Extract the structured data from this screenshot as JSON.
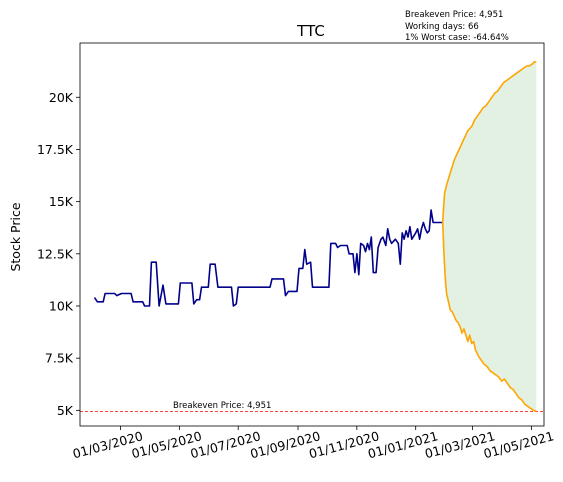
{
  "chart_data": {
    "type": "line",
    "title": "TTC",
    "xlabel": "",
    "ylabel": "Stock Price",
    "x_tick_labels": [
      "01/03/2020",
      "01/05/2020",
      "01/07/2020",
      "01/09/2020",
      "01/11/2020",
      "01/01/2021",
      "01/03/2021",
      "01/05/2021"
    ],
    "x_ticks": [
      "2020-03-01",
      "2020-05-01",
      "2020-07-01",
      "2020-09-01",
      "2020-11-01",
      "2021-01-01",
      "2021-03-01",
      "2021-05-01"
    ],
    "y_tick_labels": [
      "5K",
      "7.5K",
      "10K",
      "12.5K",
      "15K",
      "17.5K",
      "20K"
    ],
    "y_ticks": [
      5000,
      7500,
      10000,
      12500,
      15000,
      17500,
      20000
    ],
    "xlim": [
      "2020-01-19",
      "2021-05-14"
    ],
    "ylim": [
      4250,
      22600
    ],
    "grid": false,
    "annotations": {
      "breakeven_line_label": "Breakeven Price: 4,951",
      "info_lines": [
        "Breakeven Price: 4,951",
        "Working days: 66",
        "1% Worst case: -64.64%"
      ]
    },
    "breakeven_price": 4951,
    "colors": {
      "history": "#00008b",
      "projection": "#ffa500",
      "band_fill": "#e3f1e3",
      "breakeven": "#ff0000"
    },
    "series": [
      {
        "values": [
          [
            "2020-02-03",
            10400
          ],
          [
            "2020-02-06",
            10200
          ],
          [
            "2020-02-12",
            10200
          ],
          [
            "2020-02-14",
            10600
          ],
          [
            "2020-02-24",
            10600
          ],
          [
            "2020-02-26",
            10500
          ],
          [
            "2020-03-02",
            10600
          ],
          [
            "2020-03-12",
            10600
          ],
          [
            "2020-03-14",
            10200
          ],
          [
            "2020-03-24",
            10200
          ],
          [
            "2020-03-26",
            10000
          ],
          [
            "2020-03-31",
            10000
          ],
          [
            "2020-04-02",
            12100
          ],
          [
            "2020-04-07",
            12100
          ],
          [
            "2020-04-10",
            10000
          ],
          [
            "2020-04-14",
            11000
          ],
          [
            "2020-04-17",
            10100
          ],
          [
            "2020-04-30",
            10100
          ],
          [
            "2020-05-02",
            11100
          ],
          [
            "2020-05-14",
            11100
          ],
          [
            "2020-05-16",
            10100
          ],
          [
            "2020-05-19",
            10300
          ],
          [
            "2020-05-22",
            10300
          ],
          [
            "2020-05-24",
            10900
          ],
          [
            "2020-05-31",
            10900
          ],
          [
            "2020-06-02",
            12000
          ],
          [
            "2020-06-07",
            12000
          ],
          [
            "2020-06-10",
            10900
          ],
          [
            "2020-06-24",
            10900
          ],
          [
            "2020-06-26",
            10000
          ],
          [
            "2020-06-29",
            10100
          ],
          [
            "2020-07-01",
            10900
          ],
          [
            "2020-08-03",
            10900
          ],
          [
            "2020-08-05",
            11300
          ],
          [
            "2020-08-17",
            11300
          ],
          [
            "2020-08-19",
            10500
          ],
          [
            "2020-08-22",
            10700
          ],
          [
            "2020-08-31",
            10700
          ],
          [
            "2020-09-02",
            11800
          ],
          [
            "2020-09-06",
            11800
          ],
          [
            "2020-09-08",
            12700
          ],
          [
            "2020-09-10",
            12000
          ],
          [
            "2020-09-14",
            12100
          ],
          [
            "2020-09-16",
            10900
          ],
          [
            "2020-10-03",
            10900
          ],
          [
            "2020-10-05",
            13000
          ],
          [
            "2020-10-10",
            13000
          ],
          [
            "2020-10-12",
            12800
          ],
          [
            "2020-10-15",
            12900
          ],
          [
            "2020-10-22",
            12900
          ],
          [
            "2020-10-24",
            12500
          ],
          [
            "2020-10-28",
            12500
          ],
          [
            "2020-10-30",
            11600
          ],
          [
            "2020-11-01",
            12500
          ],
          [
            "2020-11-03",
            11500
          ],
          [
            "2020-11-05",
            13000
          ],
          [
            "2020-11-08",
            12900
          ],
          [
            "2020-11-10",
            12600
          ],
          [
            "2020-11-12",
            13000
          ],
          [
            "2020-11-14",
            12700
          ],
          [
            "2020-11-16",
            13300
          ],
          [
            "2020-11-18",
            11600
          ],
          [
            "2020-11-21",
            11600
          ],
          [
            "2020-11-23",
            12800
          ],
          [
            "2020-11-26",
            13200
          ],
          [
            "2020-11-28",
            13300
          ],
          [
            "2020-12-01",
            12900
          ],
          [
            "2020-12-03",
            13700
          ],
          [
            "2020-12-05",
            13200
          ],
          [
            "2020-12-07",
            13000
          ],
          [
            "2020-12-09",
            13100
          ],
          [
            "2020-12-11",
            13200
          ],
          [
            "2020-12-14",
            13000
          ],
          [
            "2020-12-16",
            12000
          ],
          [
            "2020-12-18",
            13500
          ],
          [
            "2020-12-20",
            13200
          ],
          [
            "2020-12-22",
            13600
          ],
          [
            "2020-12-24",
            13300
          ],
          [
            "2020-12-26",
            13800
          ],
          [
            "2020-12-28",
            13200
          ],
          [
            "2021-01-01",
            13500
          ],
          [
            "2021-01-03",
            13700
          ],
          [
            "2021-01-05",
            13200
          ],
          [
            "2021-01-07",
            13700
          ],
          [
            "2021-01-09",
            14000
          ],
          [
            "2021-01-11",
            13700
          ],
          [
            "2021-01-13",
            13500
          ],
          [
            "2021-01-15",
            13600
          ],
          [
            "2021-01-17",
            14600
          ],
          [
            "2021-01-19",
            14000
          ],
          [
            "2021-01-29",
            14000
          ]
        ]
      },
      {
        "values": [
          [
            "2021-01-29",
            14000
          ],
          [
            "2021-01-30",
            14800
          ],
          [
            "2021-01-31",
            15400
          ],
          [
            "2021-02-02",
            15800
          ],
          [
            "2021-02-04",
            16100
          ],
          [
            "2021-02-06",
            16400
          ],
          [
            "2021-02-08",
            16700
          ],
          [
            "2021-02-10",
            17000
          ],
          [
            "2021-02-12",
            17200
          ],
          [
            "2021-02-14",
            17400
          ],
          [
            "2021-02-16",
            17600
          ],
          [
            "2021-02-18",
            17800
          ],
          [
            "2021-02-20",
            18000
          ],
          [
            "2021-02-22",
            18200
          ],
          [
            "2021-02-24",
            18400
          ],
          [
            "2021-02-26",
            18500
          ],
          [
            "2021-02-28",
            18600
          ],
          [
            "2021-03-03",
            18900
          ],
          [
            "2021-03-06",
            19100
          ],
          [
            "2021-03-09",
            19300
          ],
          [
            "2021-03-12",
            19500
          ],
          [
            "2021-03-15",
            19600
          ],
          [
            "2021-03-18",
            19800
          ],
          [
            "2021-03-21",
            20000
          ],
          [
            "2021-03-24",
            20200
          ],
          [
            "2021-03-27",
            20300
          ],
          [
            "2021-03-30",
            20500
          ],
          [
            "2021-04-02",
            20700
          ],
          [
            "2021-04-05",
            20800
          ],
          [
            "2021-04-08",
            20900
          ],
          [
            "2021-04-11",
            21000
          ],
          [
            "2021-04-14",
            21100
          ],
          [
            "2021-04-17",
            21200
          ],
          [
            "2021-04-20",
            21300
          ],
          [
            "2021-04-23",
            21400
          ],
          [
            "2021-04-26",
            21500
          ],
          [
            "2021-04-29",
            21500
          ],
          [
            "2021-05-02",
            21600
          ],
          [
            "2021-05-04",
            21700
          ],
          [
            "2021-05-06",
            21700
          ]
        ]
      },
      {
        "values": [
          [
            "2021-01-29",
            14000
          ],
          [
            "2021-01-30",
            12800
          ],
          [
            "2021-01-31",
            11900
          ],
          [
            "2021-02-01",
            11100
          ],
          [
            "2021-02-02",
            10600
          ],
          [
            "2021-02-04",
            10200
          ],
          [
            "2021-02-06",
            9800
          ],
          [
            "2021-02-08",
            9700
          ],
          [
            "2021-02-10",
            9500
          ],
          [
            "2021-02-12",
            9300
          ],
          [
            "2021-02-14",
            9200
          ],
          [
            "2021-02-16",
            9000
          ],
          [
            "2021-02-18",
            8700
          ],
          [
            "2021-02-20",
            8900
          ],
          [
            "2021-02-22",
            8600
          ],
          [
            "2021-02-24",
            8300
          ],
          [
            "2021-02-26",
            8600
          ],
          [
            "2021-02-28",
            8200
          ],
          [
            "2021-03-02",
            8300
          ],
          [
            "2021-03-04",
            7900
          ],
          [
            "2021-03-07",
            7600
          ],
          [
            "2021-03-10",
            7400
          ],
          [
            "2021-03-13",
            7200
          ],
          [
            "2021-03-16",
            7100
          ],
          [
            "2021-03-19",
            6900
          ],
          [
            "2021-03-22",
            6800
          ],
          [
            "2021-03-25",
            6700
          ],
          [
            "2021-03-28",
            6600
          ],
          [
            "2021-03-31",
            6400
          ],
          [
            "2021-04-03",
            6500
          ],
          [
            "2021-04-06",
            6300
          ],
          [
            "2021-04-09",
            6100
          ],
          [
            "2021-04-12",
            6000
          ],
          [
            "2021-04-15",
            5800
          ],
          [
            "2021-04-18",
            5600
          ],
          [
            "2021-04-21",
            5500
          ],
          [
            "2021-04-24",
            5300
          ],
          [
            "2021-04-27",
            5200
          ],
          [
            "2021-04-30",
            5100
          ],
          [
            "2021-05-03",
            5000
          ],
          [
            "2021-05-06",
            4951
          ]
        ]
      }
    ]
  }
}
